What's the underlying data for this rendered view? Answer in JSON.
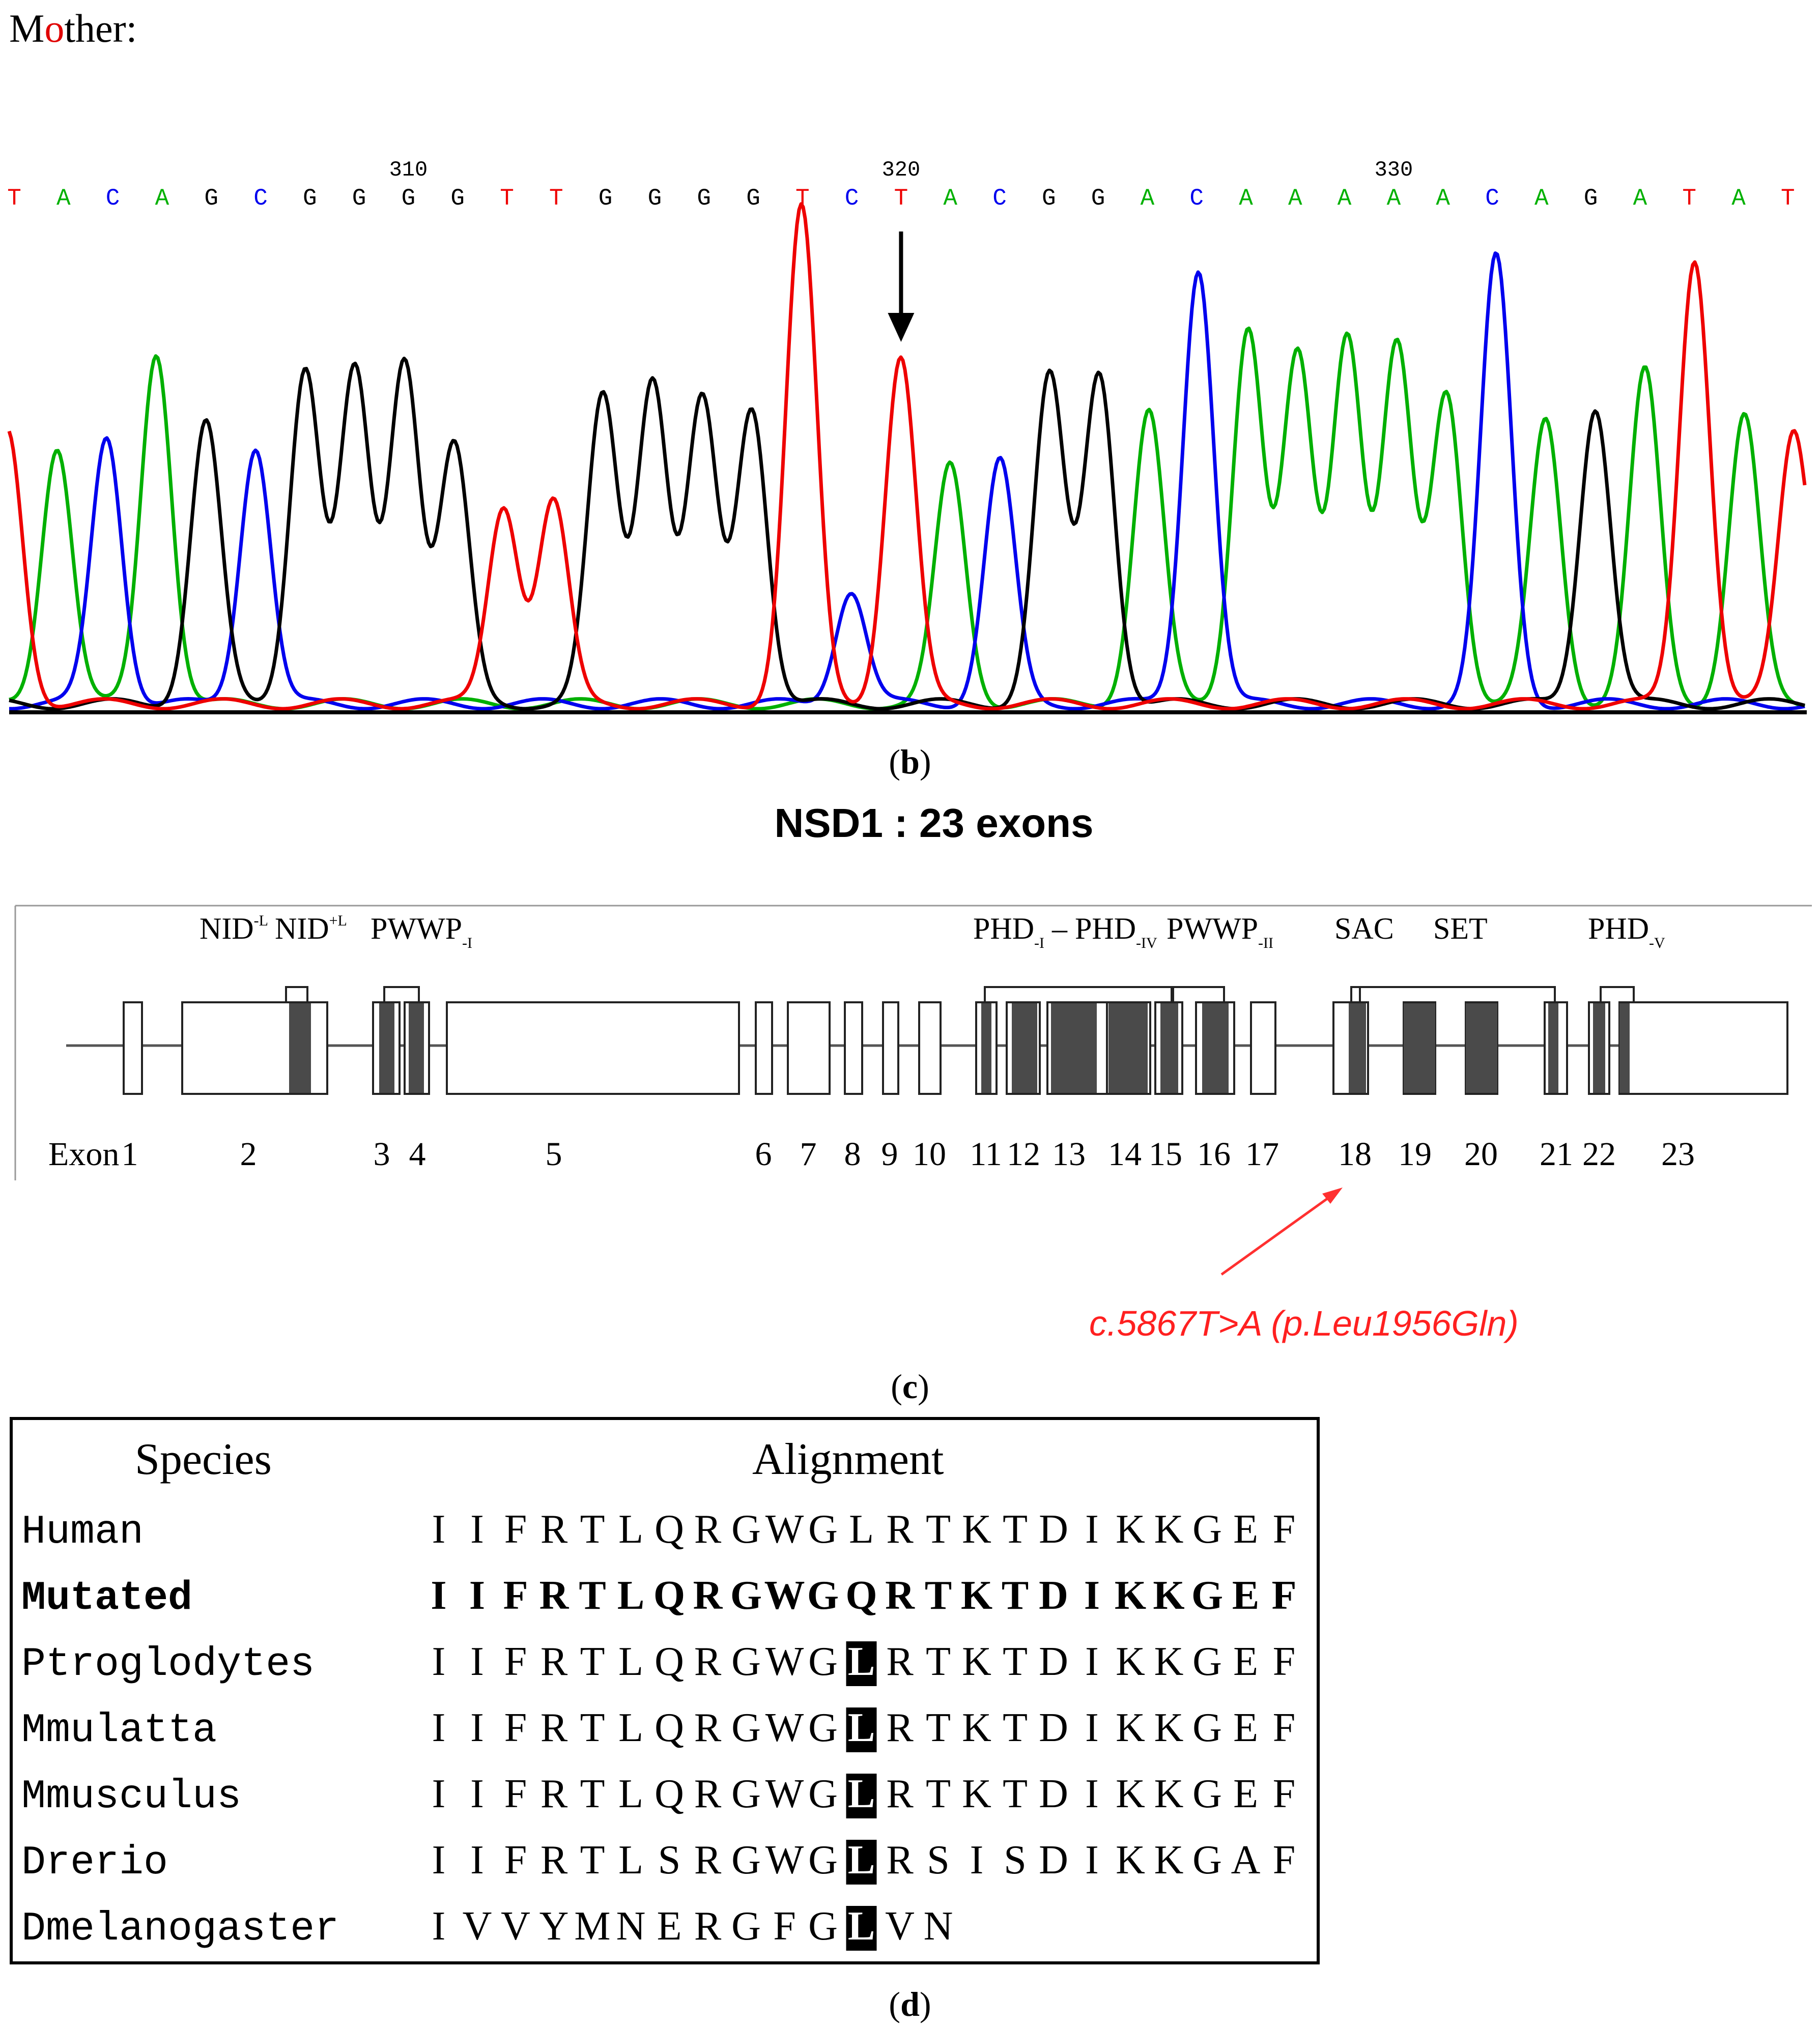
{
  "title": {
    "prefix": "M",
    "accent": "o",
    "suffix": "ther:"
  },
  "panel_b": {
    "label": "b",
    "sequence": [
      "T",
      "A",
      "C",
      "A",
      "G",
      "C",
      "G",
      "G",
      "G",
      "G",
      "T",
      "T",
      "G",
      "G",
      "G",
      "G",
      "T",
      "C",
      "T",
      "A",
      "C",
      "G",
      "G",
      "A",
      "C",
      "A",
      "A",
      "A",
      "A",
      "A",
      "C",
      "A",
      "G",
      "A",
      "T",
      "A",
      "T"
    ],
    "position_labels": [
      {
        "text": "310",
        "index": 8
      },
      {
        "text": "320",
        "index": 18
      },
      {
        "text": "330",
        "index": 28
      }
    ],
    "marker_index": 18,
    "peaks": [
      {
        "base": "A",
        "height": 0.52
      },
      {
        "base": "C",
        "height": 0.54
      },
      {
        "base": "A",
        "height": 0.71
      },
      {
        "base": "G",
        "height": 0.57
      },
      {
        "base": "C",
        "height": 0.52
      },
      {
        "base": "G",
        "height": 0.68
      },
      {
        "base": "G",
        "height": 0.67
      },
      {
        "base": "G",
        "height": 0.7
      },
      {
        "base": "G",
        "height": 0.52
      },
      {
        "base": "T",
        "height": 0.4
      },
      {
        "base": "T",
        "height": 0.41
      },
      {
        "base": "G",
        "height": 0.62
      },
      {
        "base": "G",
        "height": 0.66
      },
      {
        "base": "G",
        "height": 0.61
      },
      {
        "base": "G",
        "height": 0.6
      },
      {
        "base": "T",
        "height": 1.0
      },
      {
        "base": "C",
        "height": 0.23
      },
      {
        "base": "T",
        "height": 0.7
      },
      {
        "base": "A",
        "height": 0.48
      },
      {
        "base": "C",
        "height": 0.49
      },
      {
        "base": "G",
        "height": 0.66
      },
      {
        "base": "G",
        "height": 0.67
      },
      {
        "base": "A",
        "height": 0.59
      },
      {
        "base": "C",
        "height": 0.88
      },
      {
        "base": "A",
        "height": 0.76
      },
      {
        "base": "A",
        "height": 0.7
      },
      {
        "base": "A",
        "height": 0.75
      },
      {
        "base": "A",
        "height": 0.72
      },
      {
        "base": "A",
        "height": 0.63
      },
      {
        "base": "C",
        "height": 0.9
      },
      {
        "base": "A",
        "height": 0.57
      },
      {
        "base": "G",
        "height": 0.6
      },
      {
        "base": "A",
        "height": 0.67
      },
      {
        "base": "T",
        "height": 0.9
      },
      {
        "base": "A",
        "height": 0.58
      },
      {
        "base": "T",
        "height": 0.55
      }
    ],
    "colors": {
      "A": "#00b000",
      "C": "#0000ee",
      "G": "#000000",
      "T": "#ee0000"
    }
  },
  "panel_c": {
    "label": "c",
    "title": "NSD1 : 23 exons",
    "exon_label": "Exon",
    "exon_numbers": [
      "1",
      "2",
      "3",
      "4",
      "5",
      "6",
      "7",
      "8",
      "9",
      "10",
      "11",
      "12",
      "13",
      "14",
      "15",
      "16",
      "17",
      "18",
      "19",
      "20",
      "21",
      "22",
      "23"
    ],
    "domains": [
      "NID",
      "NID",
      "PWWP",
      "PHD",
      "PHD",
      "PWWP",
      "SAC",
      "SET",
      "PHD"
    ],
    "domain_sup": [
      "-L",
      "+L"
    ],
    "domain_sub": [
      "-I",
      "-I",
      "-IV",
      "-II",
      "-V"
    ],
    "domain_dash": "–",
    "mutation_label": "c.5867T>A (p.Leu1956Gln)",
    "mutation_exon": "18"
  },
  "panel_d": {
    "label": "d",
    "header_species": "Species",
    "header_alignment": "Alignment",
    "highlight_index": 11,
    "rows": [
      {
        "species": "Human",
        "seq": [
          "I",
          "I",
          "F",
          "R",
          "T",
          "L",
          "Q",
          "R",
          "G",
          "W",
          "G",
          "L",
          "R",
          "T",
          "K",
          "T",
          "D",
          "I",
          "K",
          "K",
          "G",
          "E",
          "F"
        ],
        "bold": false,
        "highlight": false
      },
      {
        "species": "Mutated",
        "seq": [
          "I",
          "I",
          "F",
          "R",
          "T",
          "L",
          "Q",
          "R",
          "G",
          "W",
          "G",
          "Q",
          "R",
          "T",
          "K",
          "T",
          "D",
          "I",
          "K",
          "K",
          "G",
          "E",
          "F"
        ],
        "bold": true,
        "highlight": false
      },
      {
        "species": "Ptroglodytes",
        "seq": [
          "I",
          "I",
          "F",
          "R",
          "T",
          "L",
          "Q",
          "R",
          "G",
          "W",
          "G",
          "L",
          "R",
          "T",
          "K",
          "T",
          "D",
          "I",
          "K",
          "K",
          "G",
          "E",
          "F"
        ],
        "bold": false,
        "highlight": true
      },
      {
        "species": "Mmulatta",
        "seq": [
          "I",
          "I",
          "F",
          "R",
          "T",
          "L",
          "Q",
          "R",
          "G",
          "W",
          "G",
          "L",
          "R",
          "T",
          "K",
          "T",
          "D",
          "I",
          "K",
          "K",
          "G",
          "E",
          "F"
        ],
        "bold": false,
        "highlight": true
      },
      {
        "species": "Mmusculus",
        "seq": [
          "I",
          "I",
          "F",
          "R",
          "T",
          "L",
          "Q",
          "R",
          "G",
          "W",
          "G",
          "L",
          "R",
          "T",
          "K",
          "T",
          "D",
          "I",
          "K",
          "K",
          "G",
          "E",
          "F"
        ],
        "bold": false,
        "highlight": true
      },
      {
        "species": "Drerio",
        "seq": [
          "I",
          "I",
          "F",
          "R",
          "T",
          "L",
          "S",
          "R",
          "G",
          "W",
          "G",
          "L",
          "R",
          "S",
          "I",
          "S",
          "D",
          "I",
          "K",
          "K",
          "G",
          "A",
          "F"
        ],
        "bold": false,
        "highlight": true
      },
      {
        "species": "Dmelanogaster",
        "seq": [
          "I",
          "V",
          "V",
          "Y",
          "M",
          "N",
          "E",
          "R",
          "G",
          "F",
          "G",
          "L",
          "V",
          "N"
        ],
        "bold": false,
        "highlight": true
      }
    ]
  }
}
